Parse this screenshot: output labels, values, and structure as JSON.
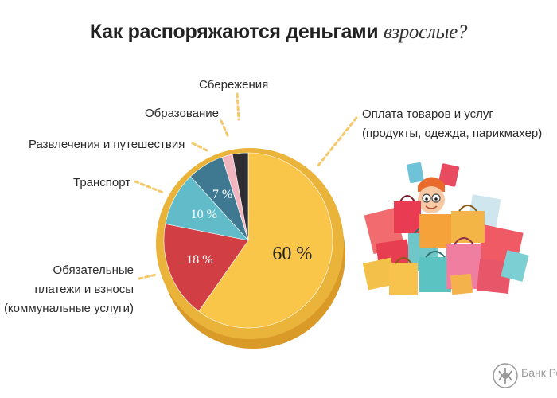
{
  "title": {
    "main": "Как распоряжаются деньгами",
    "emphasis": "взрослые?"
  },
  "chart_data": {
    "type": "pie",
    "title": "Как распоряжаются деньгами взрослые?",
    "slices": [
      {
        "name": "Оплата товаров и услуг (продукты, одежда, парикмахер)",
        "value": 60,
        "label": "60 %",
        "color": "#f9c64a"
      },
      {
        "name": "Обязательные платежи и взносы (коммунальные услуги)",
        "value": 18,
        "label": "18 %",
        "color": "#d13f44"
      },
      {
        "name": "Транспорт",
        "value": 10,
        "label": "10 %",
        "color": "#61bbc8"
      },
      {
        "name": "Развлечения и путешествия",
        "value": 7,
        "label": "7 %",
        "color": "#3f7891"
      },
      {
        "name": "Образование",
        "value": 2,
        "label": "",
        "color": "#f2b6c0"
      },
      {
        "name": "Сбережения",
        "value": 3,
        "label": "",
        "color": "#2f2f33"
      }
    ]
  },
  "labels": {
    "goods_line1": "Оплата товаров и услуг",
    "goods_line2": "(продукты, одежда, парикмахер)",
    "mandatory_line1": "Обязательные",
    "mandatory_line2": "платежи и взносы",
    "mandatory_line3": "(коммунальные услуги)",
    "transport": "Транспорт",
    "entertainment": "Развлечения и путешествия",
    "education": "Образование",
    "savings": "Сбережения"
  },
  "branding": {
    "text": "Банк Рос"
  },
  "colors": {
    "leader": "#f5c86a",
    "rim": "#eab33a",
    "rim_dark": "#d99a28"
  }
}
